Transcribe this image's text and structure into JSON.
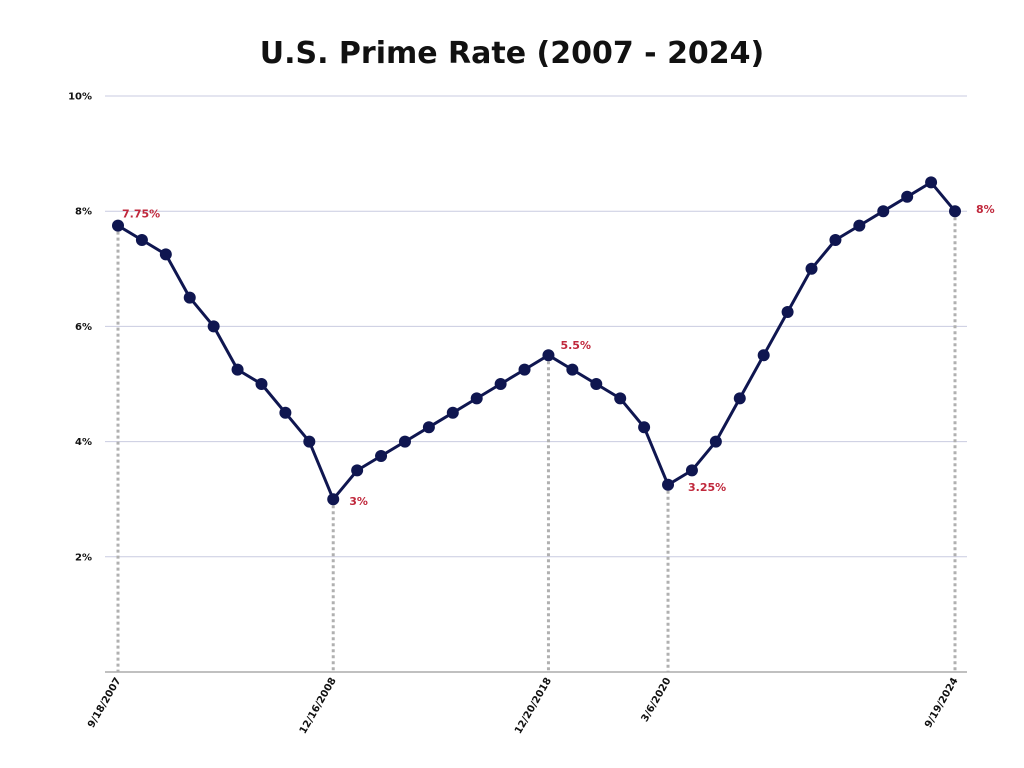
{
  "title": "U.S. Prime Rate (2007 - 2024)",
  "colors": {
    "line": "#0f1650",
    "point": "#0f1650",
    "annotation": "#c0283c",
    "grid": "#c9cbe0",
    "dropline": "#b0b0b0"
  },
  "chart_data": {
    "type": "line",
    "title": "U.S. Prime Rate (2007 - 2024)",
    "xlabel": "",
    "ylabel": "",
    "ylim": [
      0,
      10
    ],
    "yticks": [
      2,
      4,
      6,
      8,
      10
    ],
    "ytick_labels": [
      "2%",
      "4%",
      "6%",
      "8%",
      "10%"
    ],
    "grid": true,
    "series": [
      {
        "values": [
          7.75,
          7.5,
          7.25,
          6.5,
          6.0,
          5.25,
          5.0,
          4.5,
          4.0,
          3.0,
          3.5,
          3.75,
          4.0,
          4.25,
          4.5,
          4.75,
          5.0,
          5.25,
          5.5,
          5.25,
          5.0,
          4.75,
          4.25,
          3.25,
          3.5,
          4.0,
          4.75,
          5.5,
          6.25,
          7.0,
          7.5,
          7.75,
          8.0,
          8.25,
          8.5,
          8.0
        ]
      }
    ],
    "x_labels": [
      {
        "index": 0,
        "label": "9/18/2007"
      },
      {
        "index": 9,
        "label": "12/16/2008"
      },
      {
        "index": 18,
        "label": "12/20/2018"
      },
      {
        "index": 23,
        "label": "3/6/2020"
      },
      {
        "index": 35,
        "label": "9/19/2024"
      }
    ],
    "annotations": [
      {
        "index": 0,
        "text": "7.75%"
      },
      {
        "index": 9,
        "text": "3%"
      },
      {
        "index": 18,
        "text": "5.5%"
      },
      {
        "index": 23,
        "text": "3.25%"
      },
      {
        "index": 35,
        "text": "8%"
      }
    ]
  }
}
